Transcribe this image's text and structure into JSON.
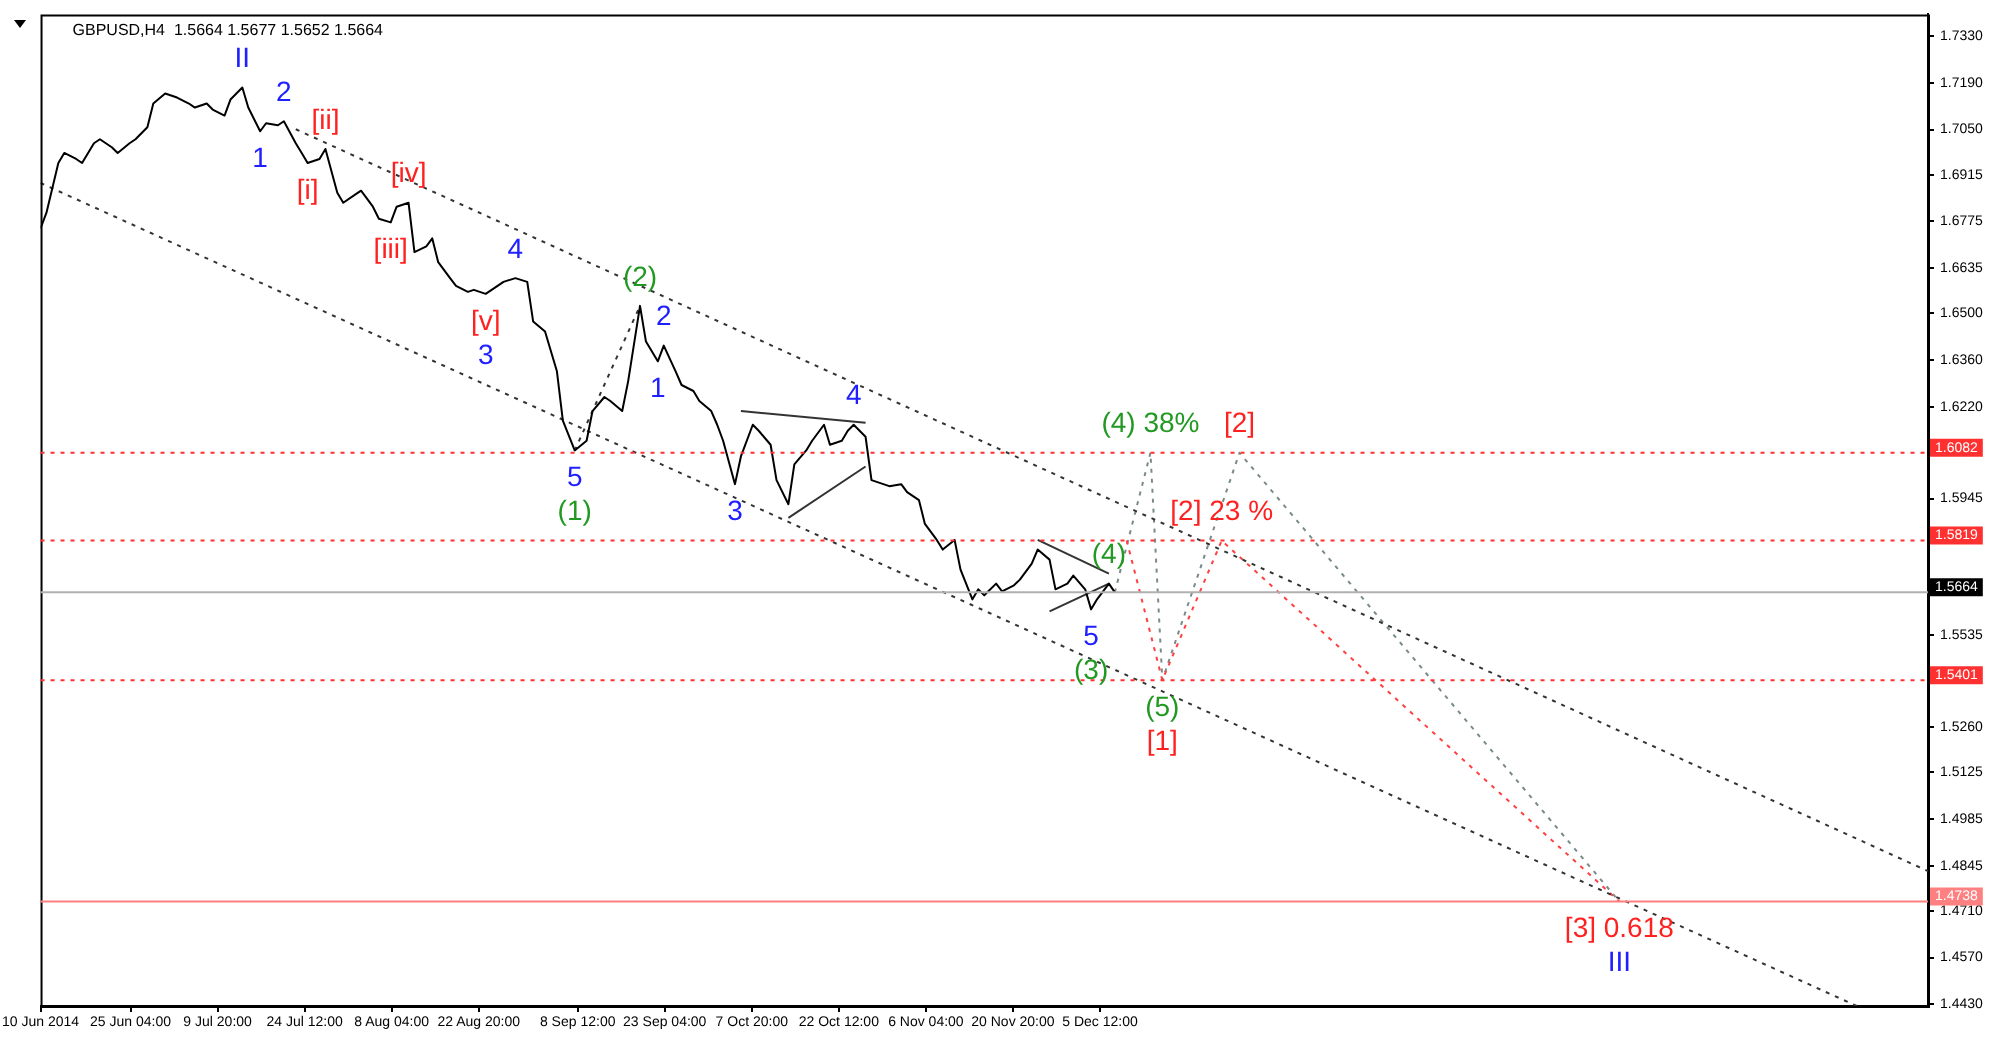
{
  "chart_data": {
    "type": "line",
    "title": "GBPUSD,H4  1.5664 1.5677 1.5652 1.5664",
    "xlim": [
      "2014-06-10",
      "2015-04-24"
    ],
    "xticks": [
      {
        "value": "2014-06-10",
        "label": "10 Jun 2014"
      },
      {
        "value": "2014-06-25T04:00",
        "label": "25 Jun 04:00"
      },
      {
        "value": "2014-07-09T20:00",
        "label": "9 Jul 20:00"
      },
      {
        "value": "2014-07-24T12:00",
        "label": "24 Jul 12:00"
      },
      {
        "value": "2014-08-08T04:00",
        "label": "8 Aug 04:00"
      },
      {
        "value": "2014-08-22T20:00",
        "label": "22 Aug 20:00"
      },
      {
        "value": "2014-09-08T12:00",
        "label": "8 Sep 12:00"
      },
      {
        "value": "2014-09-23T04:00",
        "label": "23 Sep 04:00"
      },
      {
        "value": "2014-10-07T20:00",
        "label": "7 Oct 20:00"
      },
      {
        "value": "2014-10-22T12:00",
        "label": "22 Oct 12:00"
      },
      {
        "value": "2014-11-06T04:00",
        "label": "6 Nov 04:00"
      },
      {
        "value": "2014-11-20T20:00",
        "label": "20 Nov 20:00"
      },
      {
        "value": "2014-12-05T12:00",
        "label": "5 Dec 12:00"
      }
    ],
    "ylim": [
      1.4425,
      1.7395
    ],
    "yticks": [
      {
        "value": 1.733,
        "label": "1.7330"
      },
      {
        "value": 1.719,
        "label": "1.7190"
      },
      {
        "value": 1.705,
        "label": "1.7050"
      },
      1.6915,
      1.6775,
      1.6635,
      {
        "value": 1.65,
        "label": "1.6500"
      },
      {
        "value": 1.636,
        "label": "1.6360"
      },
      {
        "value": 1.622,
        "label": "1.6220"
      },
      1.5945,
      1.5535,
      {
        "value": 1.526,
        "label": "1.5260"
      },
      1.5125,
      1.4985,
      1.4845,
      {
        "value": 1.471,
        "label": "1.4710"
      },
      {
        "value": 1.457,
        "label": "1.4570"
      },
      {
        "value": 1.443,
        "label": "1.4430"
      }
    ],
    "grid": false,
    "legend": false,
    "marker": "none",
    "series": [
      {
        "color": "#000000",
        "line_style": "solid",
        "x": [
          "2014-06-10",
          "2014-06-11",
          "2014-06-13",
          "2014-06-14",
          "2014-06-16",
          "2014-06-17",
          "2014-06-19",
          "2014-06-20",
          "2014-06-22",
          "2014-06-23",
          "2014-06-25",
          "2014-06-26",
          "2014-06-28",
          "2014-06-29",
          "2014-07-01",
          "2014-07-02",
          "2014-07-03",
          "2014-07-05",
          "2014-07-06",
          "2014-07-08",
          "2014-07-09",
          "2014-07-11",
          "2014-07-12",
          "2014-07-14",
          "2014-07-15",
          "2014-07-17",
          "2014-07-18",
          "2014-07-20",
          "2014-07-21",
          "2014-07-23",
          "2014-07-24",
          "2014-07-25",
          "2014-07-27",
          "2014-07-28",
          "2014-07-30",
          "2014-07-31",
          "2014-08-02",
          "2014-08-03",
          "2014-08-05",
          "2014-08-06",
          "2014-08-08",
          "2014-08-09",
          "2014-08-11",
          "2014-08-12",
          "2014-08-14",
          "2014-08-15",
          "2014-08-16",
          "2014-08-18",
          "2014-08-19",
          "2014-08-21",
          "2014-08-22",
          "2014-08-24",
          "2014-08-26",
          "2014-08-27",
          "2014-08-29",
          "2014-08-31",
          "2014-09-01",
          "2014-09-03",
          "2014-09-05",
          "2014-09-06",
          "2014-09-08",
          "2014-09-10",
          "2014-09-11",
          "2014-09-13",
          "2014-09-14",
          "2014-09-16",
          "2014-09-17",
          "2014-09-19",
          "2014-09-20",
          "2014-09-22",
          "2014-09-23",
          "2014-09-25",
          "2014-09-26",
          "2014-09-28",
          "2014-09-29",
          "2014-10-01",
          "2014-10-02",
          "2014-10-03",
          "2014-10-05",
          "2014-10-06",
          "2014-10-08",
          "2014-10-09",
          "2014-10-11",
          "2014-10-12",
          "2014-10-14",
          "2014-10-15",
          "2014-10-17",
          "2014-10-18",
          "2014-10-20",
          "2014-10-21",
          "2014-10-23",
          "2014-10-24",
          "2014-10-25",
          "2014-10-27",
          "2014-10-28",
          "2014-10-30",
          "2014-10-31",
          "2014-11-02",
          "2014-11-03",
          "2014-11-05",
          "2014-11-06",
          "2014-11-08",
          "2014-11-09",
          "2014-11-11",
          "2014-11-12",
          "2014-11-14",
          "2014-11-15",
          "2014-11-16",
          "2014-11-18",
          "2014-11-19",
          "2014-11-21",
          "2014-11-22",
          "2014-11-24",
          "2014-11-25",
          "2014-11-27",
          "2014-11-28",
          "2014-11-30",
          "2014-12-01",
          "2014-12-03",
          "2014-12-04",
          "2014-12-05",
          "2014-12-07",
          "2014-12-08"
        ],
        "values": [
          1.6754,
          1.6801,
          1.695,
          1.698,
          1.6962,
          1.695,
          1.7009,
          1.7021,
          1.6997,
          1.698,
          1.7009,
          1.7021,
          1.7057,
          1.7128,
          1.7158,
          1.7152,
          1.7146,
          1.7128,
          1.7116,
          1.7128,
          1.711,
          1.7092,
          1.714,
          1.7176,
          1.7116,
          1.7045,
          1.7069,
          1.7063,
          1.7075,
          1.7009,
          1.698,
          1.695,
          1.6962,
          1.6992,
          1.6861,
          1.6831,
          1.6855,
          1.6867,
          1.6819,
          1.6783,
          1.6772,
          1.6819,
          1.6831,
          1.6683,
          1.67,
          1.6724,
          1.6653,
          1.6605,
          1.6582,
          1.6564,
          1.657,
          1.6558,
          1.6582,
          1.6594,
          1.6605,
          1.6594,
          1.6475,
          1.6445,
          1.6326,
          1.6178,
          1.6089,
          1.6118,
          1.6207,
          1.6249,
          1.6237,
          1.6207,
          1.6296,
          1.6522,
          1.6415,
          1.6356,
          1.6403,
          1.6326,
          1.6285,
          1.6267,
          1.6237,
          1.6207,
          1.6166,
          1.6118,
          1.5988,
          1.6071,
          1.6166,
          1.6148,
          1.6106,
          1.6,
          1.5928,
          1.6047,
          1.6089,
          1.6118,
          1.6166,
          1.6106,
          1.6118,
          1.6148,
          1.6166,
          1.613,
          1.6,
          1.5988,
          1.5982,
          1.5988,
          1.5964,
          1.594,
          1.5869,
          1.5821,
          1.5792,
          1.5821,
          1.5732,
          1.5643,
          1.5673,
          1.5655,
          1.569,
          1.5667,
          1.5685,
          1.5702,
          1.575,
          1.5792,
          1.5762,
          1.5673,
          1.569,
          1.5714,
          1.5673,
          1.5613,
          1.5643,
          1.569,
          1.5664
        ]
      },
      {
        "color": "#333333",
        "line_style": "dotted",
        "x": [
          "2014-07-23",
          "2015-04-24"
        ],
        "values": [
          1.7051,
          1.4829
        ]
      },
      {
        "color": "#333333",
        "line_style": "dotted",
        "x": [
          "2014-06-10",
          "2015-04-12"
        ],
        "values": [
          1.689,
          1.4425
        ]
      },
      {
        "color": "#333333",
        "line_style": "dotted",
        "x": [
          "2014-09-08",
          "2014-09-19"
        ],
        "values": [
          1.6089,
          1.6522
        ]
      },
      {
        "color": "#333333",
        "line_style": "solid",
        "x": [
          "2014-10-06",
          "2014-10-27"
        ],
        "values": [
          1.6207,
          1.6172
        ]
      },
      {
        "color": "#333333",
        "line_style": "solid",
        "x": [
          "2014-10-14",
          "2014-10-27"
        ],
        "values": [
          1.5887,
          1.6041
        ]
      },
      {
        "color": "#333333",
        "line_style": "solid",
        "x": [
          "2014-11-25",
          "2014-12-07"
        ],
        "values": [
          1.5821,
          1.572
        ]
      },
      {
        "color": "#333333",
        "line_style": "solid",
        "x": [
          "2014-11-27",
          "2014-12-07"
        ],
        "values": [
          1.5607,
          1.569
        ]
      },
      {
        "color": "#ff4040",
        "line_style": "dotted",
        "x": [
          "2014-12-10",
          "2014-12-16",
          "2014-12-26",
          "2015-03-03"
        ],
        "values": [
          1.5819,
          1.5401,
          1.5819,
          1.4738
        ]
      },
      {
        "color": "#7a8a8a",
        "line_style": "dotted",
        "x": [
          "2014-12-08",
          "2014-12-14",
          "2014-12-16",
          "2014-12-29",
          "2015-03-03"
        ],
        "values": [
          1.5664,
          1.6082,
          1.5401,
          1.6082,
          1.4738
        ]
      }
    ],
    "ref_lines": [
      {
        "axis": "y",
        "value": 1.6082,
        "label": "1.6082",
        "color": "#ff3030",
        "line_style": "dotted"
      },
      {
        "axis": "y",
        "value": 1.5819,
        "label": "1.5819",
        "color": "#ff3030",
        "line_style": "dotted"
      },
      {
        "axis": "y",
        "value": 1.5664,
        "label": "1.5664",
        "color": "#b0b0b0",
        "line_style": "solid"
      },
      {
        "axis": "y",
        "value": 1.5401,
        "label": "1.5401",
        "color": "#ff3030",
        "line_style": "dotted"
      },
      {
        "axis": "y",
        "value": 1.4738,
        "label": "1.4738",
        "color": "#ff8080",
        "line_style": "solid"
      }
    ],
    "annotations": [
      {
        "text": "II",
        "x": "2014-07-14",
        "y": 1.7176
      },
      {
        "text": "1",
        "x": "2014-07-17",
        "y": 1.7045
      },
      {
        "text": "2",
        "x": "2014-07-21",
        "y": 1.7075
      },
      {
        "text": "[i]",
        "x": "2014-07-25",
        "y": 1.695
      },
      {
        "text": "[ii]",
        "x": "2014-07-28",
        "y": 1.6992
      },
      {
        "text": "[iii]",
        "x": "2014-08-08",
        "y": 1.6772
      },
      {
        "text": "[iv]",
        "x": "2014-08-11",
        "y": 1.6831
      },
      {
        "text": "[v]",
        "x": "2014-08-24",
        "y": 1.6558
      },
      {
        "text": "3",
        "x": "2014-08-24",
        "y": 1.6558
      },
      {
        "text": "4",
        "x": "2014-08-29",
        "y": 1.6605
      },
      {
        "text": "5",
        "x": "2014-09-08",
        "y": 1.6089
      },
      {
        "text": "(1)",
        "x": "2014-09-08",
        "y": 1.6089
      },
      {
        "text": "(2)",
        "x": "2014-09-19",
        "y": 1.6522
      },
      {
        "text": "1",
        "x": "2014-09-22",
        "y": 1.6356
      },
      {
        "text": "2",
        "x": "2014-09-23",
        "y": 1.6403
      },
      {
        "text": "3",
        "x": "2014-10-05",
        "y": 1.5988
      },
      {
        "text": "4",
        "x": "2014-10-25",
        "y": 1.6166
      },
      {
        "text": "5",
        "x": "2014-12-04",
        "y": 1.5613
      },
      {
        "text": "(3)",
        "x": "2014-12-04",
        "y": 1.5613
      },
      {
        "text": "(4)",
        "x": "2014-12-07",
        "y": 1.569
      },
      {
        "text": "(4) 38%",
        "x": "2014-12-14",
        "y": 1.6082
      },
      {
        "text": "[2]",
        "x": "2014-12-29",
        "y": 1.6082
      },
      {
        "text": "[2] 23 %",
        "x": "2014-12-26",
        "y": 1.5819
      },
      {
        "text": "(5)",
        "x": "2014-12-16",
        "y": 1.5401
      },
      {
        "text": "[1]",
        "x": "2014-12-16",
        "y": 1.5401
      },
      {
        "text": "[3] 0.618",
        "x": "2015-03-03",
        "y": 1.4738
      },
      {
        "text": "III",
        "x": "2015-03-03",
        "y": 1.4738
      }
    ]
  }
}
